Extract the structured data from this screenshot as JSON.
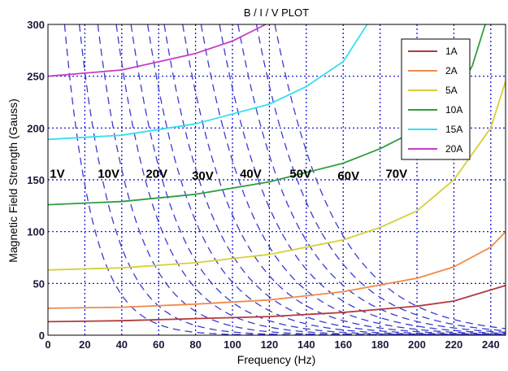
{
  "chart_data": {
    "type": "line",
    "title": "B / I / V PLOT",
    "xlabel": "Frequency (Hz)",
    "ylabel": "Magnetic Field Strength (Gauss)",
    "xlim": [
      0,
      248
    ],
    "ylim": [
      0,
      300
    ],
    "xticks": [
      0,
      20,
      40,
      60,
      80,
      100,
      120,
      140,
      160,
      180,
      200,
      220,
      240
    ],
    "yticks": [
      0,
      50,
      100,
      150,
      200,
      250,
      300
    ],
    "grid": true,
    "legend_position": "top-right",
    "current_series": [
      {
        "name": "1A",
        "color": "#b23a3a",
        "x": [
          0,
          40,
          80,
          120,
          160,
          200,
          220,
          248
        ],
        "y": [
          13,
          14,
          16,
          18,
          22,
          28,
          33,
          48
        ]
      },
      {
        "name": "2A",
        "color": "#f08a4b",
        "x": [
          0,
          40,
          80,
          120,
          160,
          200,
          220,
          240,
          248
        ],
        "y": [
          26,
          27,
          30,
          34,
          42,
          55,
          66,
          85,
          100
        ]
      },
      {
        "name": "5A",
        "color": "#d6d03a",
        "x": [
          0,
          40,
          80,
          120,
          160,
          180,
          200,
          220,
          240,
          248
        ],
        "y": [
          63,
          65,
          70,
          78,
          92,
          104,
          120,
          150,
          200,
          245
        ]
      },
      {
        "name": "10A",
        "color": "#2e9e3e",
        "x": [
          0,
          40,
          80,
          120,
          160,
          180,
          200,
          220,
          230,
          237
        ],
        "y": [
          126,
          129,
          136,
          148,
          166,
          180,
          198,
          230,
          260,
          300
        ]
      },
      {
        "name": "15A",
        "color": "#33e0f0",
        "x": [
          0,
          40,
          80,
          120,
          140,
          160,
          173
        ],
        "y": [
          189,
          193,
          204,
          223,
          240,
          264,
          300
        ]
      },
      {
        "name": "20A",
        "color": "#c63ec6",
        "x": [
          0,
          40,
          80,
          100,
          118
        ],
        "y": [
          250,
          256,
          272,
          284,
          300
        ]
      }
    ],
    "voltage_labels": [
      {
        "text": "1V",
        "x": 1,
        "y": 152
      },
      {
        "text": "10V",
        "x": 27,
        "y": 152
      },
      {
        "text": "20V",
        "x": 53,
        "y": 152
      },
      {
        "text": "30V",
        "x": 78,
        "y": 150
      },
      {
        "text": "40V",
        "x": 104,
        "y": 152
      },
      {
        "text": "50V",
        "x": 131,
        "y": 152
      },
      {
        "text": "60V",
        "x": 157,
        "y": 150
      },
      {
        "text": "70V",
        "x": 183,
        "y": 152
      }
    ],
    "voltage_lines": {
      "color": "#3b3bcf",
      "style": "dashed",
      "top_x_at_300": [
        9,
        17,
        27,
        37,
        45,
        54,
        63,
        73,
        83,
        93,
        103,
        113,
        123
      ],
      "decay_rate": 0.022
    }
  }
}
